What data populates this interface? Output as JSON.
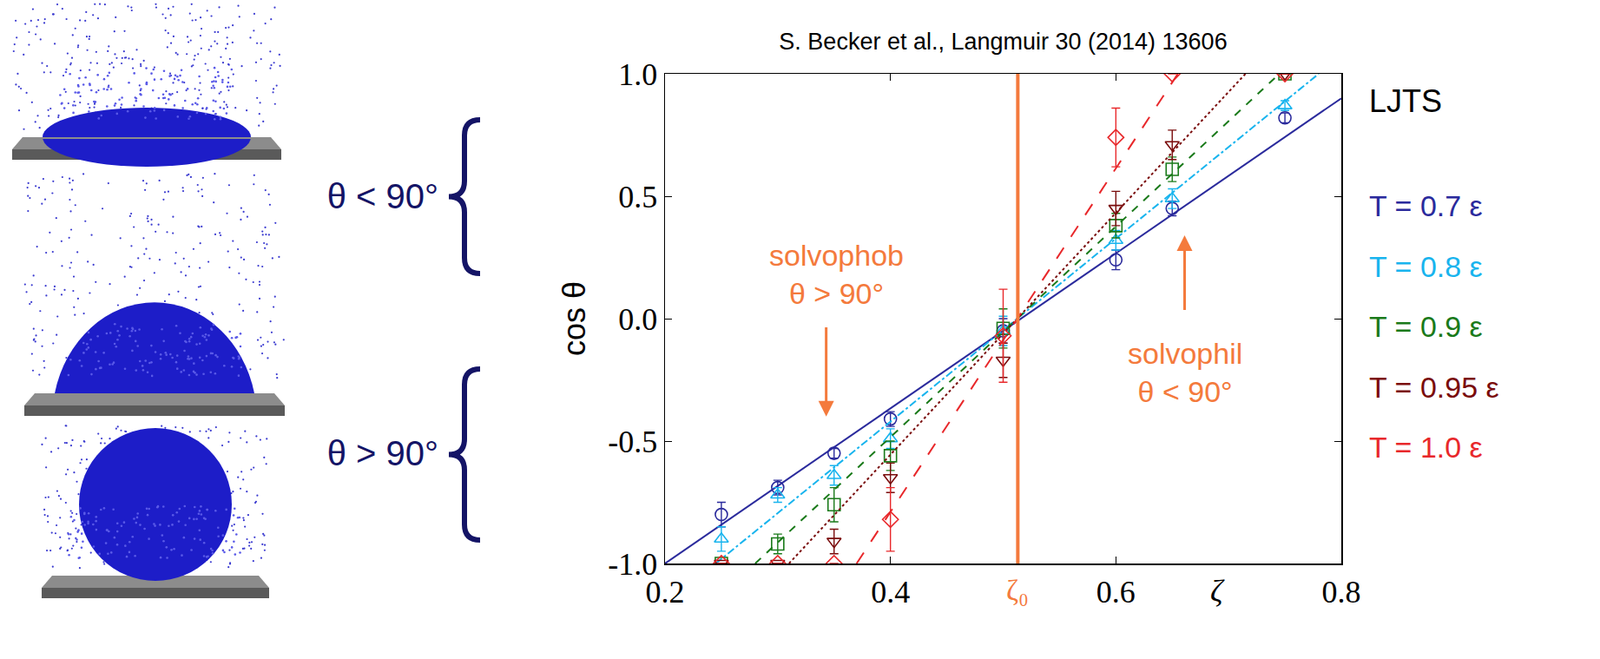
{
  "chart_data": {
    "type": "scatter",
    "title": "S. Becker et al., Langmuir 30 (2014) 13606",
    "xlabel": "ζ",
    "ylabel": "cos θ",
    "xlim": [
      0.2,
      0.8
    ],
    "xticks": [
      0.2,
      0.4,
      0.6,
      0.8
    ],
    "ylim": [
      -1,
      1
    ],
    "yticks": [
      {
        "value": -1,
        "label": "-1.0"
      },
      -0.5,
      {
        "value": 0,
        "label": "0.0"
      },
      0.5,
      {
        "value": 1,
        "label": "1.0"
      }
    ],
    "grid": false,
    "legend": "right",
    "legend_title": "LJTS",
    "zeta0": {
      "value": 0.513,
      "label": "ζ₀",
      "color": "#f47a3c"
    },
    "x": [
      0.25,
      0.3,
      0.35,
      0.4,
      0.5,
      0.6,
      0.65,
      0.75
    ],
    "series": [
      {
        "name": "T = 0.7 ε",
        "color": "#2a2a9c",
        "marker": "circle-open",
        "line_style": "solid",
        "values": [
          -0.8,
          -0.69,
          -0.55,
          -0.41,
          -0.05,
          0.24,
          0.45,
          0.82
        ],
        "error": [
          0.05,
          0.03,
          0.02,
          0.03,
          0.05,
          0.04,
          0.03,
          0.02
        ],
        "fit": {
          "x": [
            0.2,
            0.8
          ],
          "values": [
            -1,
            0.9
          ]
        }
      },
      {
        "name": "T = 0.8 ε",
        "color": "#18b4ee",
        "marker": "triangle-up-open",
        "line_style": "dashdot",
        "values": [
          -0.9,
          -0.72,
          -0.64,
          -0.49,
          -0.05,
          0.32,
          0.49,
          0.87
        ],
        "error": [
          0.05,
          0.03,
          0.04,
          0.04,
          0.06,
          0.04,
          0.04,
          0.02
        ],
        "fit": {
          "x": [
            0.245,
            0.78
          ],
          "values": [
            -1,
            1
          ]
        }
      },
      {
        "name": "T = 0.9 ε",
        "color": "#1a7a1a",
        "marker": "square-open",
        "line_style": "dash",
        "values": [
          -1.0,
          -0.92,
          -0.76,
          -0.56,
          -0.04,
          0.38,
          0.61,
          1.0
        ],
        "error": [
          0,
          0.04,
          0.07,
          0.06,
          0.08,
          0.05,
          0.05,
          0
        ],
        "fit": {
          "x": [
            0.28,
            0.745
          ],
          "values": [
            -1,
            1
          ]
        }
      },
      {
        "name": "T = 0.95 ε",
        "color": "#7a0c0c",
        "marker": "triangle-down-open",
        "line_style": "dot",
        "values": [
          -1.0,
          -1.0,
          -0.91,
          -0.65,
          -0.17,
          0.45,
          0.71,
          1.0
        ],
        "error": [
          0,
          0,
          0.05,
          0.06,
          0.07,
          0.07,
          0.06,
          0
        ],
        "fit": {
          "x": [
            0.31,
            0.715
          ],
          "values": [
            -1,
            1
          ]
        }
      },
      {
        "name": "T = 1.0 ε",
        "color": "#e8282b",
        "marker": "diamond-open",
        "line_style": "longdash",
        "values": [
          -1.0,
          -1.0,
          -1.0,
          -0.82,
          -0.07,
          0.74,
          1.0,
          1.0
        ],
        "error": [
          0,
          0,
          0,
          0.13,
          0.19,
          0.12,
          0,
          0
        ],
        "fit": {
          "x": [
            0.37,
            0.655
          ],
          "values": [
            -1,
            1
          ]
        }
      }
    ],
    "annotations": [
      {
        "text": [
          "solvophob",
          "θ > 90°"
        ],
        "x": 0.352,
        "y": 0.18,
        "color": "#f47a3c",
        "arrow_from": [
          0.343,
          -0.03
        ],
        "arrow_to": [
          0.343,
          -0.4
        ]
      },
      {
        "text": [
          "solvophil",
          "θ < 90°"
        ],
        "x": 0.661,
        "y": -0.22,
        "color": "#f47a3c",
        "arrow_from": [
          0.661,
          0.03
        ],
        "arrow_to": [
          0.661,
          0.34
        ]
      }
    ],
    "side_labels": [
      {
        "text": "θ < 90°",
        "color": "#141466"
      },
      {
        "text": "θ > 90°",
        "color": "#141466"
      }
    ]
  }
}
